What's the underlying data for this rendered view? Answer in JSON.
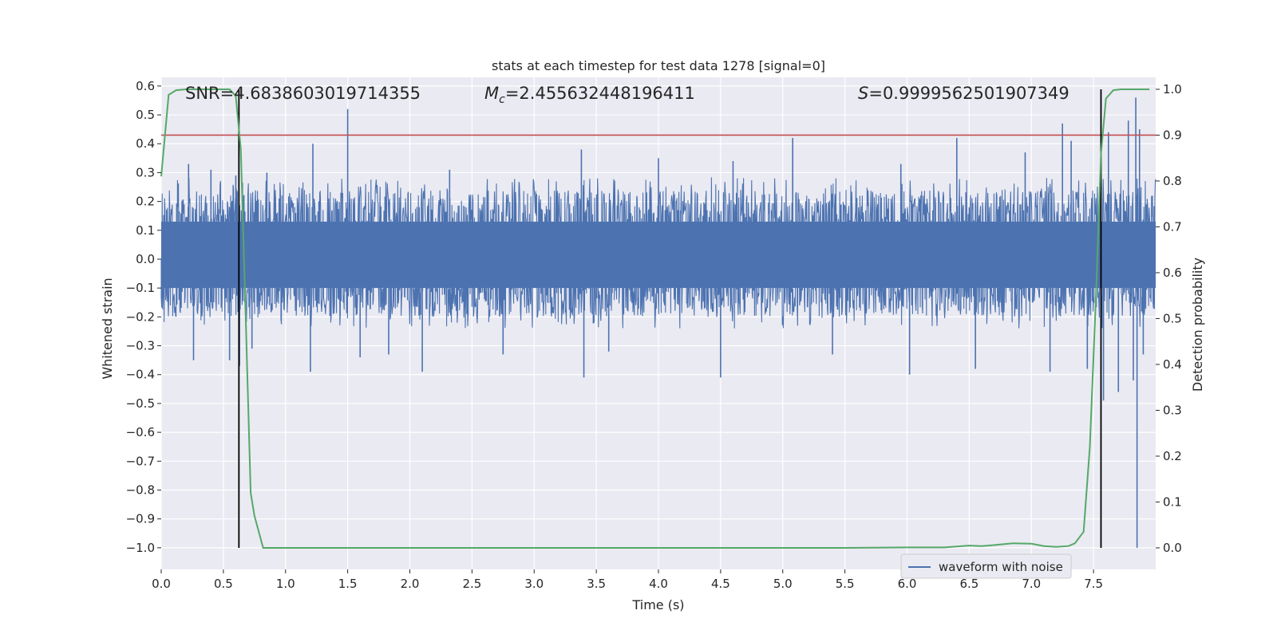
{
  "chart_data": {
    "type": "line",
    "title": "stats at each timestep for test data 1278 [signal=0]",
    "xlabel": "Time (s)",
    "ylabel": "Whitened strain",
    "y2label": "Detection probability",
    "xlim": [
      0.0,
      8.0
    ],
    "ylim": [
      -1.075,
      0.63
    ],
    "y2lim": [
      -0.047,
      1.026
    ],
    "xticks": [
      "0.0",
      "0.5",
      "1.0",
      "1.5",
      "2.0",
      "2.5",
      "3.0",
      "3.5",
      "4.0",
      "4.5",
      "5.0",
      "5.5",
      "6.0",
      "6.5",
      "7.0",
      "7.5"
    ],
    "yticks": [
      "0.6",
      "0.5",
      "0.4",
      "0.3",
      "0.2",
      "0.1",
      "0.0",
      "−0.1",
      "−0.2",
      "−0.3",
      "−0.4",
      "−0.5",
      "−0.6",
      "−0.7",
      "−0.8",
      "−0.9",
      "−1.0"
    ],
    "y2ticks": [
      "1.0",
      "0.9",
      "0.8",
      "0.7",
      "0.6",
      "0.5",
      "0.4",
      "0.3",
      "0.2",
      "0.1",
      "0.0"
    ],
    "grid": true,
    "legend": {
      "position": "lower-right",
      "entries": [
        "waveform with noise"
      ]
    },
    "annotations": {
      "snr": "SNR=4.6838603019714355",
      "mc_symbol": "M",
      "mc_sub": "c",
      "mc_value": "=2.455632448196411",
      "s_symbol": "S",
      "s_value": "=0.9999562501907349"
    },
    "threshold_probability": 0.9,
    "vertical_markers": [
      0.625,
      7.56
    ],
    "waveform": {
      "name": "waveform with noise",
      "color": "#4c72b0",
      "core_band": [
        -0.1,
        0.13
      ],
      "typical_upper": 0.24,
      "typical_lower": -0.2,
      "spikes": [
        [
          0.22,
          0.33
        ],
        [
          0.26,
          -0.35
        ],
        [
          0.4,
          0.31
        ],
        [
          0.55,
          -0.35
        ],
        [
          0.6,
          0.29
        ],
        [
          0.63,
          -0.37
        ],
        [
          0.73,
          -0.31
        ],
        [
          0.85,
          0.3
        ],
        [
          1.2,
          -0.39
        ],
        [
          1.22,
          0.4
        ],
        [
          1.5,
          0.52
        ],
        [
          1.6,
          -0.34
        ],
        [
          1.83,
          -0.33
        ],
        [
          2.1,
          -0.39
        ],
        [
          2.32,
          0.31
        ],
        [
          2.75,
          -0.33
        ],
        [
          3.4,
          -0.41
        ],
        [
          3.38,
          0.38
        ],
        [
          3.6,
          -0.32
        ],
        [
          4.0,
          0.35
        ],
        [
          4.5,
          -0.41
        ],
        [
          4.6,
          0.34
        ],
        [
          5.08,
          0.42
        ],
        [
          5.4,
          -0.33
        ],
        [
          5.95,
          0.33
        ],
        [
          6.02,
          -0.4
        ],
        [
          6.4,
          0.42
        ],
        [
          6.55,
          -0.38
        ],
        [
          6.95,
          0.37
        ],
        [
          7.15,
          -0.39
        ],
        [
          7.25,
          0.47
        ],
        [
          7.32,
          0.41
        ],
        [
          7.45,
          -0.38
        ],
        [
          7.58,
          -0.49
        ],
        [
          7.62,
          0.44
        ],
        [
          7.7,
          -0.46
        ],
        [
          7.78,
          0.48
        ],
        [
          7.82,
          -0.42
        ],
        [
          7.84,
          0.56
        ],
        [
          7.85,
          -1.0
        ],
        [
          7.87,
          0.45
        ],
        [
          7.9,
          -0.33
        ]
      ]
    },
    "detection_probability": {
      "color": "#55a868",
      "x": [
        0.0,
        0.03,
        0.06,
        0.12,
        0.2,
        0.3,
        0.45,
        0.55,
        0.6,
        0.64,
        0.68,
        0.72,
        0.75,
        0.82,
        0.9,
        1.5,
        3.0,
        4.5,
        5.5,
        6.0,
        6.3,
        6.4,
        6.5,
        6.6,
        6.7,
        6.85,
        7.0,
        7.1,
        7.2,
        7.3,
        7.35,
        7.42,
        7.47,
        7.52,
        7.56,
        7.6,
        7.66,
        7.72,
        7.9,
        7.95
      ],
      "y": [
        0.81,
        0.9,
        0.988,
        0.998,
        1.0,
        1.0,
        1.0,
        1.0,
        0.985,
        0.87,
        0.5,
        0.12,
        0.07,
        0.0,
        0.0,
        0.0,
        0.0,
        0.0,
        0.0,
        0.001,
        0.001,
        0.003,
        0.005,
        0.004,
        0.006,
        0.01,
        0.009,
        0.004,
        0.002,
        0.004,
        0.01,
        0.035,
        0.22,
        0.55,
        0.86,
        0.98,
        0.998,
        1.0,
        1.0,
        1.0
      ]
    },
    "colors": {
      "threshold": "#c44e52",
      "marker": "#000000",
      "background": "#eaeaf2",
      "grid": "#ffffff"
    }
  }
}
